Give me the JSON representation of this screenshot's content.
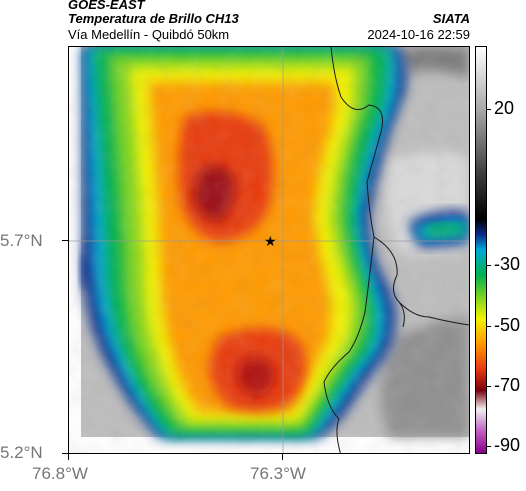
{
  "header": {
    "satellite": "GOES-EAST",
    "product": "Temperatura de Brillo CH13",
    "region": "Vía Medellín - Quibdó 50km",
    "org": "SIATA",
    "datetime": "2024-10-16 22:59"
  },
  "axes": {
    "lat_labels": [
      "5.7°N",
      "5.2°N"
    ],
    "lon_labels": [
      "76.8°W",
      "76.3°W"
    ]
  },
  "colorbar": {
    "labels": [
      "20",
      "-30",
      "-50",
      "-70",
      "-90"
    ],
    "units": "",
    "stops": [
      {
        "v": 40,
        "color": "#ffffff"
      },
      {
        "v": 20,
        "color": "#a8a8a8"
      },
      {
        "v": 0,
        "color": "#404040"
      },
      {
        "v": -15,
        "color": "#000000"
      },
      {
        "v": -20,
        "color": "#0a2a8a"
      },
      {
        "v": -25,
        "color": "#00a8d8"
      },
      {
        "v": -33,
        "color": "#00b050"
      },
      {
        "v": -40,
        "color": "#7ad321"
      },
      {
        "v": -47,
        "color": "#f2f200"
      },
      {
        "v": -55,
        "color": "#ff9a00"
      },
      {
        "v": -63,
        "color": "#e83a10"
      },
      {
        "v": -70,
        "color": "#7a0010"
      },
      {
        "v": -76,
        "color": "#f0f0f0"
      },
      {
        "v": -83,
        "color": "#c060c0"
      },
      {
        "v": -90,
        "color": "#8a008a"
      }
    ]
  },
  "marker": {
    "label": "star",
    "lat": 5.7,
    "lon": -76.32
  }
}
